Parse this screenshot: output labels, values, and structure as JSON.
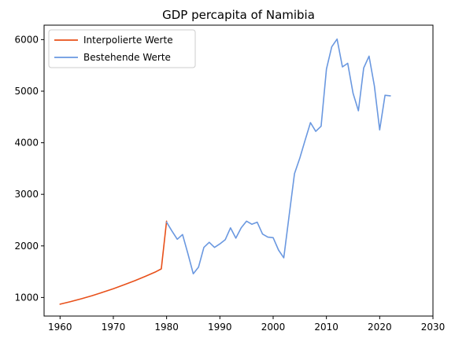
{
  "chart_data": {
    "type": "line",
    "title": "GDP percapita of Namibia",
    "xlabel": "",
    "ylabel": "",
    "xlim": [
      1957,
      2030
    ],
    "ylim": [
      640,
      6280
    ],
    "xticks": [
      1960,
      1970,
      1980,
      1990,
      2000,
      2010,
      2020,
      2030
    ],
    "yticks": [
      1000,
      2000,
      3000,
      4000,
      5000,
      6000
    ],
    "grid": false,
    "legend_position": "top-left",
    "series": [
      {
        "name": "Interpolierte Werte",
        "color": "#e8501a",
        "x": [
          1960,
          1962,
          1964,
          1966,
          1968,
          1970,
          1972,
          1974,
          1976,
          1978,
          1979,
          1980
        ],
        "y": [
          870,
          920,
          975,
          1035,
          1100,
          1170,
          1245,
          1325,
          1410,
          1500,
          1555,
          2480
        ]
      },
      {
        "name": "Bestehende Werte",
        "color": "#6a98e0",
        "x": [
          1980,
          1981,
          1982,
          1983,
          1984,
          1985,
          1986,
          1987,
          1988,
          1989,
          1990,
          1991,
          1992,
          1993,
          1994,
          1995,
          1996,
          1997,
          1998,
          1999,
          2000,
          2001,
          2002,
          2003,
          2004,
          2005,
          2006,
          2007,
          2008,
          2009,
          2010,
          2011,
          2012,
          2013,
          2014,
          2015,
          2016,
          2017,
          2018,
          2019,
          2020,
          2021,
          2022
        ],
        "y": [
          2460,
          2290,
          2130,
          2220,
          1850,
          1460,
          1590,
          1970,
          2070,
          1970,
          2040,
          2120,
          2350,
          2150,
          2350,
          2480,
          2420,
          2460,
          2230,
          2170,
          2160,
          1920,
          1770,
          2590,
          3400,
          3700,
          4050,
          4390,
          4220,
          4320,
          5430,
          5860,
          6010,
          5470,
          5540,
          4960,
          4620,
          5450,
          5680,
          5100,
          4250,
          4920,
          4910
        ]
      }
    ]
  }
}
